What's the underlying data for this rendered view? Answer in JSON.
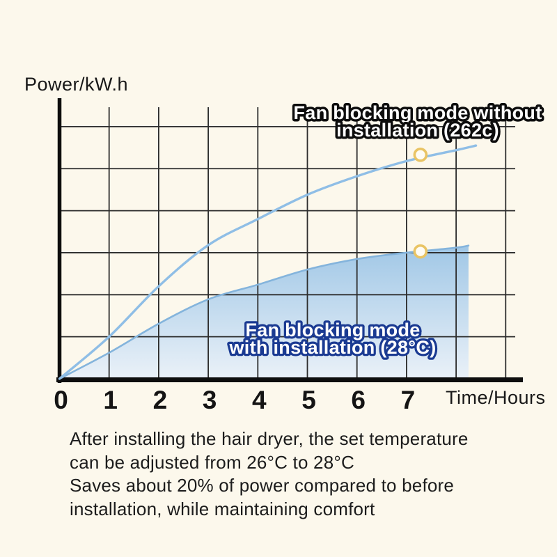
{
  "chart": {
    "y_axis_label": "Power/kW.h",
    "x_axis_label": "Time/Hours",
    "labels": {
      "without_line1": "Fan blocking mode without",
      "without_line2": "installation (262c)",
      "with_line1": "Fan blocking mode",
      "with_line2": "with installation (28°C)"
    },
    "colors": {
      "background": "#FCF8EC",
      "grid": "#2D2D2D",
      "axis": "#0E0E0E",
      "curve": "#8FBEE6",
      "area_edge": "#84B4DC",
      "area_gradient_top": "#A0C7E6",
      "area_gradient_bottom": "#EAF1F8",
      "marker_ring": "#E9C464",
      "marker_fill": "#FEFCF4",
      "label_outline_dark": "#0D0D0D",
      "label_outline_navy": "#1A3A92",
      "text": "#1C1C1C"
    }
  },
  "chart_data": {
    "type": "area",
    "title": "",
    "xlabel": "Time/Hours",
    "ylabel": "Power/kW.h",
    "x_ticks": [
      0,
      1,
      2,
      3,
      4,
      5,
      6,
      7
    ],
    "xlim": [
      0,
      9.4
    ],
    "ylim": [
      0,
      6.7
    ],
    "grid": true,
    "grid_columns": 9,
    "grid_rows": 6,
    "y_tick_labels_shown": false,
    "note": "y axis has no numeric tick labels; values are in grid units (1 unit = 1 horizontal gridline)",
    "series": [
      {
        "name": "Fan blocking mode without installation (262c)",
        "style": "line",
        "points": [
          [
            0,
            0
          ],
          [
            1,
            1.0
          ],
          [
            2,
            2.2
          ],
          [
            3,
            3.18
          ],
          [
            4,
            3.8
          ],
          [
            5,
            4.38
          ],
          [
            6,
            4.82
          ],
          [
            7,
            5.18
          ],
          [
            8,
            5.44
          ],
          [
            8.4,
            5.55
          ]
        ]
      },
      {
        "name": "Fan blocking mode with installation (28°C)",
        "style": "area",
        "points": [
          [
            0,
            0
          ],
          [
            1,
            0.62
          ],
          [
            2,
            1.31
          ],
          [
            3,
            1.89
          ],
          [
            4,
            2.24
          ],
          [
            5,
            2.6
          ],
          [
            6,
            2.85
          ],
          [
            7,
            3.0
          ],
          [
            8,
            3.12
          ],
          [
            8.25,
            3.17
          ]
        ]
      }
    ],
    "markers": [
      {
        "series": "without",
        "t": 7.28,
        "v": 5.33
      },
      {
        "series": "with",
        "t": 7.28,
        "v": 3.03
      }
    ],
    "legend_position": "on-chart"
  },
  "caption": {
    "lines": [
      "After installing the hair dryer, the set temperature",
      "can be adjusted from 26°C to 28°C",
      "Saves about 20% of power compared to before",
      "installation, while maintaining comfort"
    ]
  }
}
